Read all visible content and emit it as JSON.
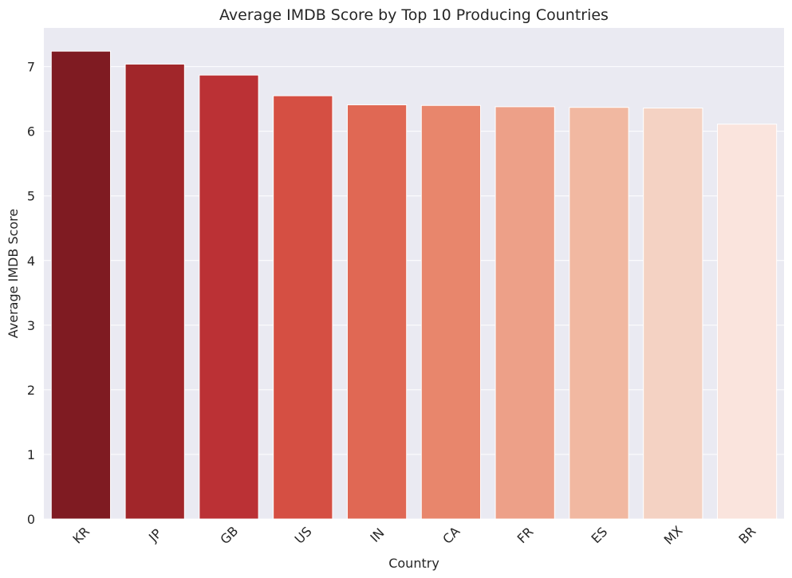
{
  "chart_data": {
    "type": "bar",
    "title": "Average IMDB Score by Top 10 Producing Countries",
    "xlabel": "Country",
    "ylabel": "Average IMDB Score",
    "categories": [
      "KR",
      "JP",
      "GB",
      "US",
      "IN",
      "CA",
      "FR",
      "ES",
      "MX",
      "BR"
    ],
    "values": [
      7.24,
      7.04,
      6.87,
      6.55,
      6.41,
      6.4,
      6.38,
      6.37,
      6.36,
      6.11
    ],
    "yticks": [
      "0",
      "1",
      "2",
      "3",
      "4",
      "5",
      "6",
      "7"
    ],
    "ylim": [
      0,
      7.6
    ],
    "grid": true,
    "background": "#eaeaf2",
    "colors": [
      "#7f1b22",
      "#a1262a",
      "#bb3135",
      "#d54f43",
      "#e06854",
      "#e8866c",
      "#eda088",
      "#f1b8a1",
      "#f4d2c3",
      "#fae4dd"
    ]
  }
}
